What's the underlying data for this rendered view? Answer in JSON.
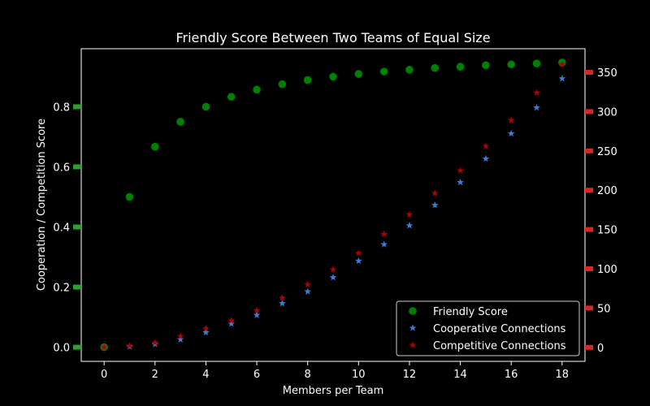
{
  "chart_data": {
    "type": "scatter",
    "title": "Friendly Score Between Two Teams of Equal Size",
    "xlabel": "Members per Team",
    "ylabel": "Cooperation / Competition Score",
    "xlim": [
      -0.9,
      18.9
    ],
    "ylim_left": [
      -0.047,
      0.993
    ],
    "ylim_right": [
      -17.8,
      380
    ],
    "x_ticks": [
      0,
      2,
      4,
      6,
      8,
      10,
      12,
      14,
      16,
      18
    ],
    "y_left_ticks": [
      0.0,
      0.2,
      0.4,
      0.6,
      0.8
    ],
    "y_left_tick_labels": [
      "0.0",
      "0.2",
      "0.4",
      "0.6",
      "0.8"
    ],
    "y_right_ticks": [
      0,
      50,
      100,
      150,
      200,
      250,
      300,
      350
    ],
    "legend_position": "lower-right",
    "grid": false,
    "x": [
      0,
      1,
      2,
      3,
      4,
      5,
      6,
      7,
      8,
      9,
      10,
      11,
      12,
      13,
      14,
      15,
      16,
      17,
      18
    ],
    "series": [
      {
        "name": "Friendly Score",
        "axis": "left",
        "marker": "circle",
        "color": "#008000",
        "values": [
          0.0,
          0.5,
          0.667,
          0.75,
          0.8,
          0.833,
          0.857,
          0.875,
          0.889,
          0.9,
          0.909,
          0.917,
          0.923,
          0.929,
          0.933,
          0.938,
          0.941,
          0.944,
          0.947
        ]
      },
      {
        "name": "Cooperative Connections",
        "axis": "right",
        "marker": "star",
        "color": "#3b7dd8",
        "values": [
          0,
          1,
          4,
          10,
          19,
          30,
          41,
          56,
          71,
          89,
          110,
          131,
          155,
          181,
          210,
          240,
          272,
          305,
          342
        ]
      },
      {
        "name": "Competitive Connections",
        "axis": "right",
        "marker": "star",
        "color": "#b00000",
        "values": [
          0,
          2,
          6,
          14,
          24,
          34,
          47,
          63,
          80,
          99,
          120,
          144,
          169,
          196,
          225,
          256,
          289,
          324,
          360
        ]
      }
    ],
    "left_tick_color": "#2ca02c",
    "right_tick_color": "#d62728"
  }
}
